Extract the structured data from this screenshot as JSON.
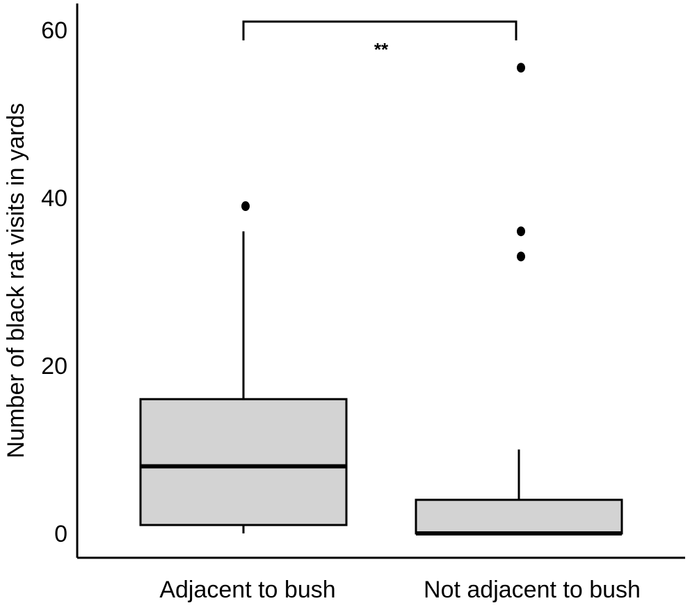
{
  "chart_data": {
    "type": "box",
    "title": "",
    "xlabel": "",
    "ylabel": "Number of black rat visits in yards",
    "ylim": [
      -3,
      63
    ],
    "yticks": [
      0,
      20,
      40,
      60
    ],
    "ytick_labels": [
      "0",
      "20",
      "40",
      "60"
    ],
    "grid": false,
    "legend": "none",
    "box_color": "#d3d3d3",
    "stroke_color": "#000000",
    "categories": [
      "Adjacent to bush",
      "Not adjacent to bush"
    ],
    "boxes": [
      {
        "category": "Adjacent to bush",
        "whisker_low": 0,
        "q1": 1,
        "median": 8,
        "q3": 16,
        "whisker_high": 36,
        "outliers": [
          39
        ]
      },
      {
        "category": "Not adjacent to bush",
        "whisker_low": 0,
        "q1": 0,
        "median": 0,
        "q3": 4,
        "whisker_high": 10,
        "outliers": [
          33,
          36,
          55.5
        ]
      }
    ],
    "significance": {
      "between": [
        "Adjacent to bush",
        "Not adjacent to bush"
      ],
      "label": "**"
    }
  }
}
